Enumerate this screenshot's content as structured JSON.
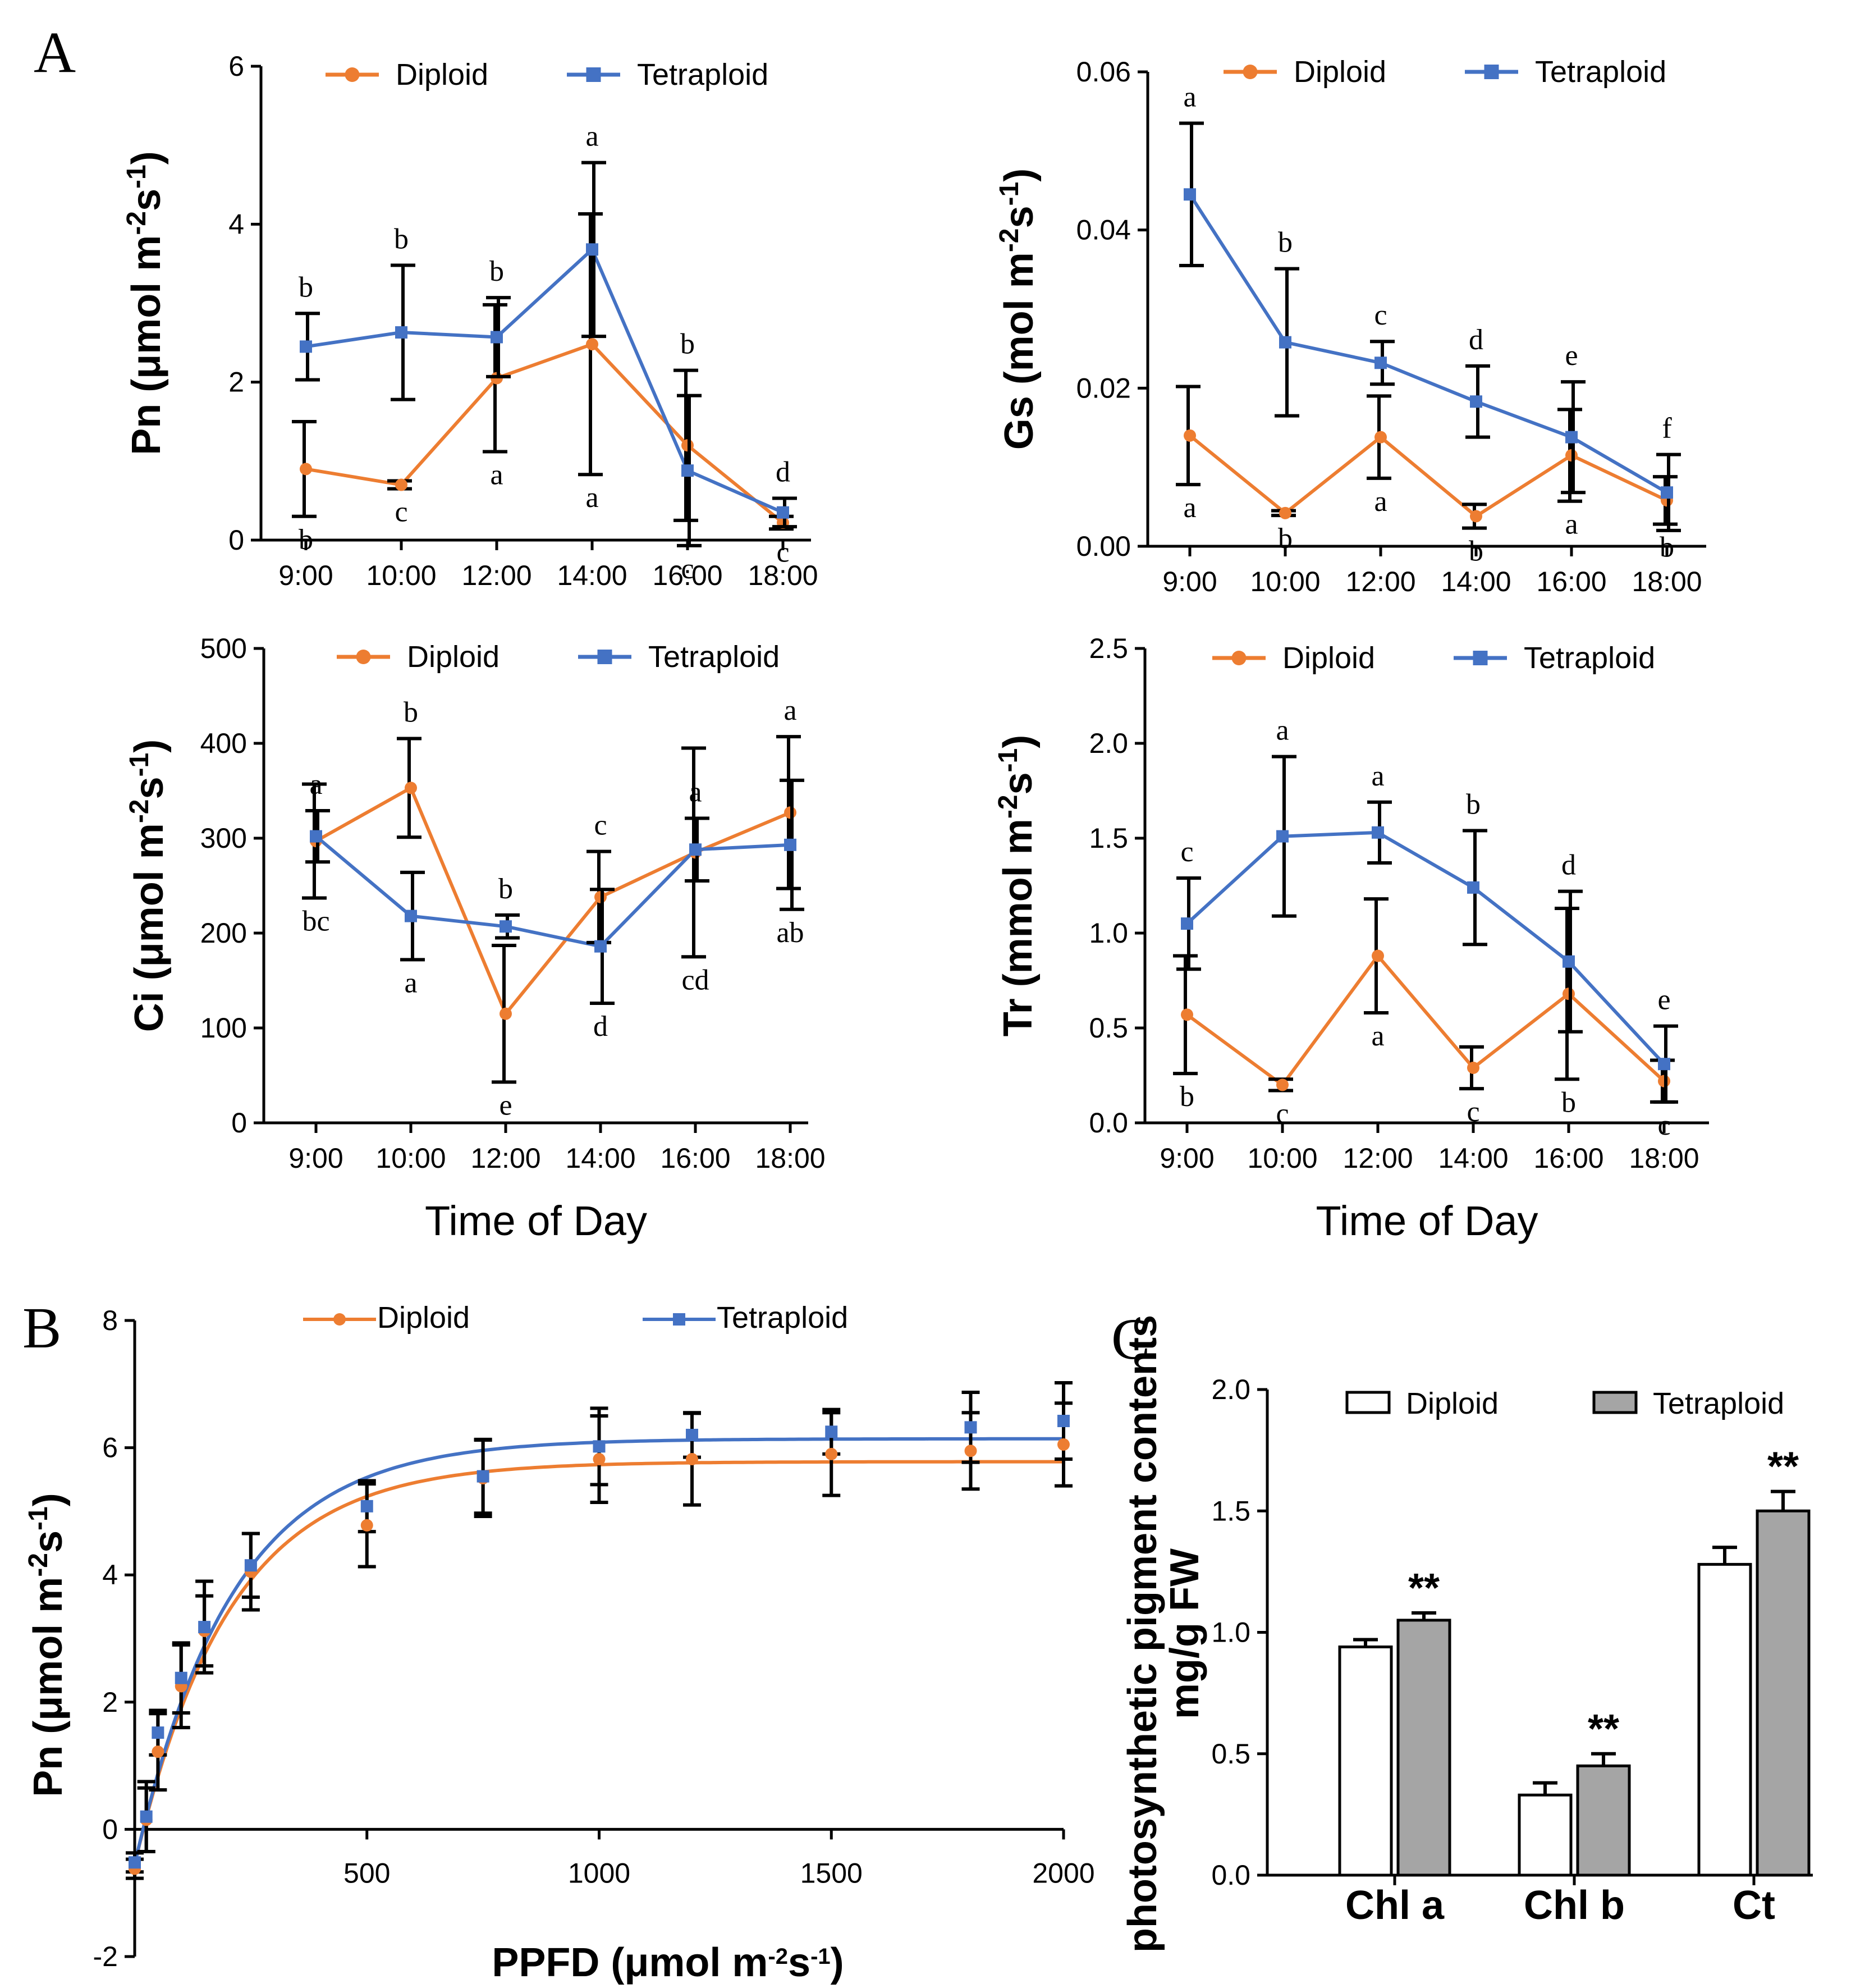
{
  "panel_labels": {
    "A": "A",
    "B": "B",
    "C": "C"
  },
  "colors": {
    "diploid": "#ED7D31",
    "tetraploid": "#4472C4",
    "bar_diploid": "#ffffff",
    "bar_tetraploid": "#A5A5A5"
  },
  "chart_data": [
    {
      "id": "pn",
      "type": "line",
      "ylabel_main": "Pn (μmol m",
      "ylabel_sup1": "-2",
      "ylabel_mid": "s",
      "ylabel_sup2": "-1",
      "ylabel_end": ")",
      "xlabel": "",
      "categories": [
        "9:00",
        "10:00",
        "12:00",
        "14:00",
        "16:00",
        "18:00"
      ],
      "ylim": [
        0,
        6
      ],
      "yticks": [
        0,
        2,
        4,
        6
      ],
      "ytick_labels": [
        "0",
        "2",
        "4",
        "6"
      ],
      "legend": [
        "Diploid",
        "Tetraploid"
      ],
      "series": [
        {
          "name": "Diploid",
          "values": [
            0.9,
            0.7,
            2.05,
            2.48,
            1.2,
            0.22
          ],
          "err": [
            0.6,
            0.05,
            0.93,
            1.65,
            0.95,
            0.08
          ],
          "letters": [
            "b",
            "c",
            "a",
            "a",
            "b",
            "c"
          ]
        },
        {
          "name": "Tetraploid",
          "values": [
            2.45,
            2.63,
            2.57,
            3.68,
            0.88,
            0.35
          ],
          "err": [
            0.42,
            0.85,
            0.5,
            1.1,
            0.95,
            0.18
          ],
          "letters": [
            "b",
            "b",
            "b",
            "a",
            "c",
            "d"
          ]
        }
      ]
    },
    {
      "id": "gs",
      "type": "line",
      "ylabel_main": "Gs (mol m",
      "ylabel_sup1": "-2",
      "ylabel_mid": "s",
      "ylabel_sup2": "-1",
      "ylabel_end": ")",
      "xlabel": "",
      "categories": [
        "9:00",
        "10:00",
        "12:00",
        "14:00",
        "16:00",
        "18:00"
      ],
      "ylim": [
        0,
        0.06
      ],
      "yticks": [
        0,
        0.02,
        0.04,
        0.06
      ],
      "ytick_labels": [
        "0.00",
        "0.02",
        "0.04",
        "0.06"
      ],
      "legend": [
        "Diploid",
        "Tetraploid"
      ],
      "series": [
        {
          "name": "Diploid",
          "values": [
            0.014,
            0.0042,
            0.0138,
            0.0038,
            0.0115,
            0.0058
          ],
          "err": [
            0.0062,
            0.0003,
            0.0052,
            0.0015,
            0.0058,
            0.003
          ],
          "letters": [
            "a",
            "b",
            "a",
            "b",
            "a",
            "b"
          ]
        },
        {
          "name": "Tetraploid",
          "values": [
            0.0445,
            0.0258,
            0.0232,
            0.0183,
            0.0138,
            0.0068
          ],
          "err": [
            0.009,
            0.0093,
            0.0027,
            0.0045,
            0.007,
            0.0048
          ],
          "letters": [
            "a",
            "b",
            "c",
            "d",
            "e",
            "f"
          ]
        }
      ]
    },
    {
      "id": "ci",
      "type": "line",
      "ylabel_main": "Ci (μmol m",
      "ylabel_sup1": "-2",
      "ylabel_mid": "s",
      "ylabel_sup2": "-1",
      "ylabel_end": ")",
      "xlabel": "Time of Day",
      "categories": [
        "9:00",
        "10:00",
        "12:00",
        "14:00",
        "16:00",
        "18:00"
      ],
      "ylim": [
        0,
        500
      ],
      "yticks": [
        0,
        100,
        200,
        300,
        400,
        500
      ],
      "ytick_labels": [
        "0",
        "100",
        "200",
        "300",
        "400",
        "500"
      ],
      "legend": [
        "Diploid",
        "Tetraploid"
      ],
      "series": [
        {
          "name": "Diploid",
          "values": [
            297,
            353,
            115,
            238,
            285,
            327
          ],
          "err": [
            60,
            52,
            72,
            48,
            110,
            80
          ],
          "letters": [
            "bc",
            "b",
            "e",
            "c",
            "cd",
            "a"
          ]
        },
        {
          "name": "Tetraploid",
          "values": [
            302,
            218,
            207,
            186,
            288,
            293
          ],
          "err": [
            27,
            46,
            12,
            60,
            33,
            68
          ],
          "letters": [
            "a",
            "a",
            "b",
            "d",
            "a",
            "ab"
          ]
        }
      ]
    },
    {
      "id": "tr",
      "type": "line",
      "ylabel_main": "Tr (mmol m",
      "ylabel_sup1": "-2",
      "ylabel_mid": "s",
      "ylabel_sup2": "-1",
      "ylabel_end": ")",
      "xlabel": "Time of Day",
      "categories": [
        "9:00",
        "10:00",
        "12:00",
        "14:00",
        "16:00",
        "18:00"
      ],
      "ylim": [
        0,
        2.5
      ],
      "yticks": [
        0,
        0.5,
        1.0,
        1.5,
        2.0,
        2.5
      ],
      "ytick_labels": [
        "0.0",
        "0.5",
        "1.0",
        "1.5",
        "2.0",
        "2.5"
      ],
      "legend": [
        "Diploid",
        "Tetraploid"
      ],
      "series": [
        {
          "name": "Diploid",
          "values": [
            0.57,
            0.2,
            0.88,
            0.29,
            0.68,
            0.22
          ],
          "err": [
            0.31,
            0.03,
            0.3,
            0.11,
            0.45,
            0.11
          ],
          "letters": [
            "b",
            "c",
            "a",
            "c",
            "b",
            "c"
          ]
        },
        {
          "name": "Tetraploid",
          "values": [
            1.05,
            1.51,
            1.53,
            1.24,
            0.85,
            0.31
          ],
          "err": [
            0.24,
            0.42,
            0.16,
            0.3,
            0.37,
            0.2
          ],
          "letters": [
            "c",
            "a",
            "a",
            "b",
            "d",
            "e"
          ]
        }
      ]
    },
    {
      "id": "lightcurve",
      "type": "scatter",
      "ylabel_main": "Pn (μmol m",
      "ylabel_sup1": "-2",
      "ylabel_mid": "s",
      "ylabel_sup2": "-1",
      "ylabel_end": ")",
      "xlabel_main": "PPFD (μmol m",
      "xlabel_sup1": "-2",
      "xlabel_mid": "s",
      "xlabel_sup2": "-1",
      "xlabel_end": ")",
      "xlim": [
        0,
        2000
      ],
      "xticks": [
        500,
        1000,
        1500,
        2000
      ],
      "xtick_labels": [
        "500",
        "1000",
        "1500",
        "2000"
      ],
      "ylim": [
        -2,
        8
      ],
      "yticks": [
        -2,
        0,
        2,
        4,
        6,
        8
      ],
      "ytick_labels": [
        "-2",
        "0",
        "2",
        "4",
        "6",
        "8"
      ],
      "legend": [
        "Diploid",
        "Tetraploid"
      ],
      "fit_pmax": {
        "Diploid": 5.78,
        "Tetraploid": 6.14
      },
      "fit_offset": -0.55,
      "fit_k": {
        "Diploid": 0.0049,
        "Tetraploid": 0.0048
      },
      "series": [
        {
          "name": "Diploid",
          "x": [
            0,
            25,
            50,
            100,
            150,
            250,
            500,
            750,
            1000,
            1200,
            1500,
            1800,
            2000
          ],
          "y": [
            -0.62,
            0.15,
            1.22,
            2.25,
            3.12,
            4.05,
            4.78,
            5.52,
            5.82,
            5.82,
            5.9,
            5.95,
            6.05
          ],
          "err": [
            0.15,
            0.5,
            0.6,
            0.65,
            0.55,
            0.6,
            0.65,
            0.6,
            0.68,
            0.72,
            0.65,
            0.6,
            0.65
          ]
        },
        {
          "name": "Tetraploid",
          "x": [
            0,
            25,
            50,
            100,
            150,
            250,
            500,
            750,
            1000,
            1200,
            1500,
            1800,
            2000
          ],
          "y": [
            -0.52,
            0.2,
            1.52,
            2.38,
            3.18,
            4.15,
            5.08,
            5.55,
            6.02,
            6.2,
            6.25,
            6.32,
            6.42
          ],
          "err": [
            0.15,
            0.55,
            0.35,
            0.55,
            0.72,
            0.5,
            0.4,
            0.58,
            0.6,
            0.35,
            0.35,
            0.55,
            0.6
          ]
        }
      ]
    },
    {
      "id": "pigments",
      "type": "bar",
      "ylabel": "photosynthetic pigment contents",
      "ylabel_unit": "mg/g FW",
      "categories": [
        "Chl a",
        "Chl b",
        "Ct"
      ],
      "ylim": [
        0,
        2.0
      ],
      "yticks": [
        0,
        0.5,
        1.0,
        1.5,
        2.0
      ],
      "ytick_labels": [
        "0.0",
        "0.5",
        "1.0",
        "1.5",
        "2.0"
      ],
      "legend": [
        "Diploid",
        "Tetraploid"
      ],
      "series": [
        {
          "name": "Diploid",
          "values": [
            0.94,
            0.33,
            1.28
          ],
          "err": [
            0.03,
            0.05,
            0.07
          ]
        },
        {
          "name": "Tetraploid",
          "values": [
            1.05,
            0.45,
            1.5
          ],
          "err": [
            0.03,
            0.05,
            0.08
          ]
        }
      ],
      "annotations": [
        "**",
        "**",
        "**"
      ]
    }
  ]
}
